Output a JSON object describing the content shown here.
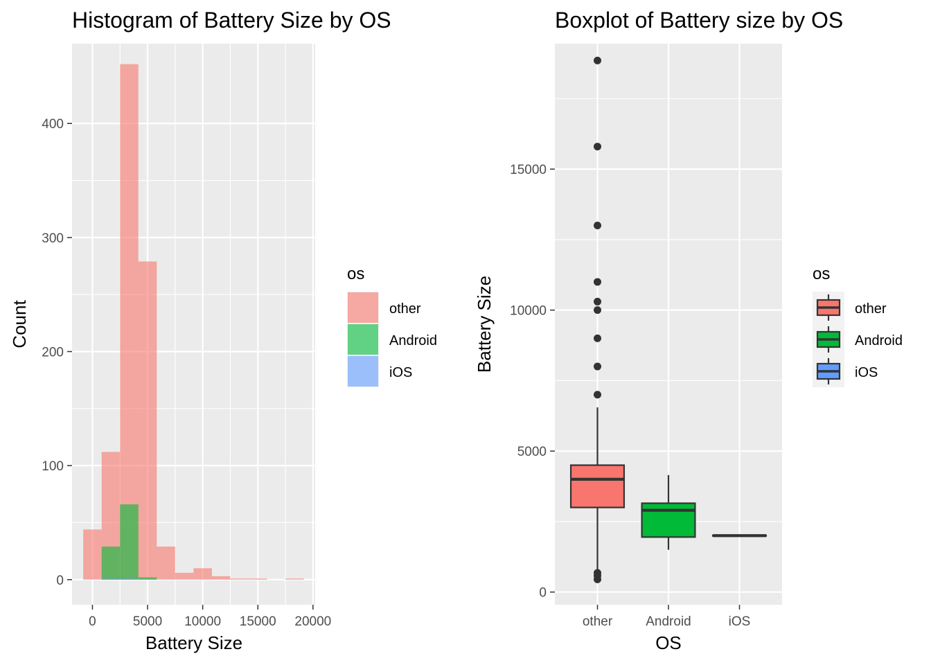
{
  "colors": {
    "panel_bg": "#ebebeb",
    "grid_major": "#ffffff",
    "tick": "#333333",
    "other": "#f8766d",
    "android": "#00ba38",
    "ios": "#619cff",
    "box_line": "#333333"
  },
  "chart_data": [
    {
      "type": "histogram",
      "title": "Histogram of Battery Size by OS",
      "xlabel": "Battery Size",
      "ylabel": "Count",
      "xlim": [
        -1850,
        20200
      ],
      "ylim": [
        -22,
        470
      ],
      "x_ticks": [
        0,
        5000,
        10000,
        15000,
        20000
      ],
      "x_tick_labels": [
        "0",
        "5000",
        "10000",
        "15000",
        "20000"
      ],
      "y_ticks": [
        0,
        100,
        200,
        300,
        400
      ],
      "y_tick_labels": [
        "0",
        "100",
        "200",
        "300",
        "400"
      ],
      "grid": true,
      "bin_width": 1667,
      "bin_starts": [
        -833,
        833,
        2500,
        4167,
        5833,
        7500,
        9167,
        10833,
        12500,
        14167,
        15833,
        17500
      ],
      "fill_alpha": 0.6,
      "series": [
        {
          "name": "other",
          "color_key": "other",
          "values": [
            44,
            112,
            452,
            279,
            29,
            6,
            10,
            3,
            1,
            1,
            0,
            1
          ]
        },
        {
          "name": "Android",
          "color_key": "android",
          "values": [
            0,
            29,
            66,
            2,
            0,
            0,
            0,
            0,
            0,
            0,
            0,
            0
          ]
        },
        {
          "name": "iOS",
          "color_key": "ios",
          "values": [
            0,
            1,
            1,
            0,
            0,
            0,
            0,
            0,
            0,
            0,
            0,
            0
          ]
        }
      ],
      "legend": {
        "title": "os",
        "position": "right",
        "items": [
          "other",
          "Android",
          "iOS"
        ]
      }
    },
    {
      "type": "boxplot",
      "title": "Boxplot of Battery size by OS",
      "xlabel": "OS",
      "ylabel": "Battery Size",
      "categories": [
        "other",
        "Android",
        "iOS"
      ],
      "ylim": [
        -450,
        19450
      ],
      "y_ticks": [
        0,
        5000,
        10000,
        15000
      ],
      "y_tick_labels": [
        "0",
        "5000",
        "10000",
        "15000"
      ],
      "grid": true,
      "boxes": [
        {
          "name": "other",
          "color_key": "other",
          "q1": 3000,
          "median": 4000,
          "q3": 4500,
          "whisker_low": 700,
          "whisker_high": 6550,
          "outliers": [
            18850,
            15800,
            13000,
            11000,
            10300,
            10000,
            9000,
            8000,
            7000,
            680,
            580,
            450
          ]
        },
        {
          "name": "Android",
          "color_key": "android",
          "q1": 1950,
          "median": 2900,
          "q3": 3150,
          "whisker_low": 1500,
          "whisker_high": 4150,
          "outliers": []
        },
        {
          "name": "iOS",
          "color_key": "ios",
          "q1": 1990,
          "median": 2000,
          "q3": 2010,
          "whisker_low": 1990,
          "whisker_high": 2010,
          "outliers": []
        }
      ],
      "legend": {
        "title": "os",
        "position": "right",
        "items": [
          "other",
          "Android",
          "iOS"
        ]
      }
    }
  ]
}
